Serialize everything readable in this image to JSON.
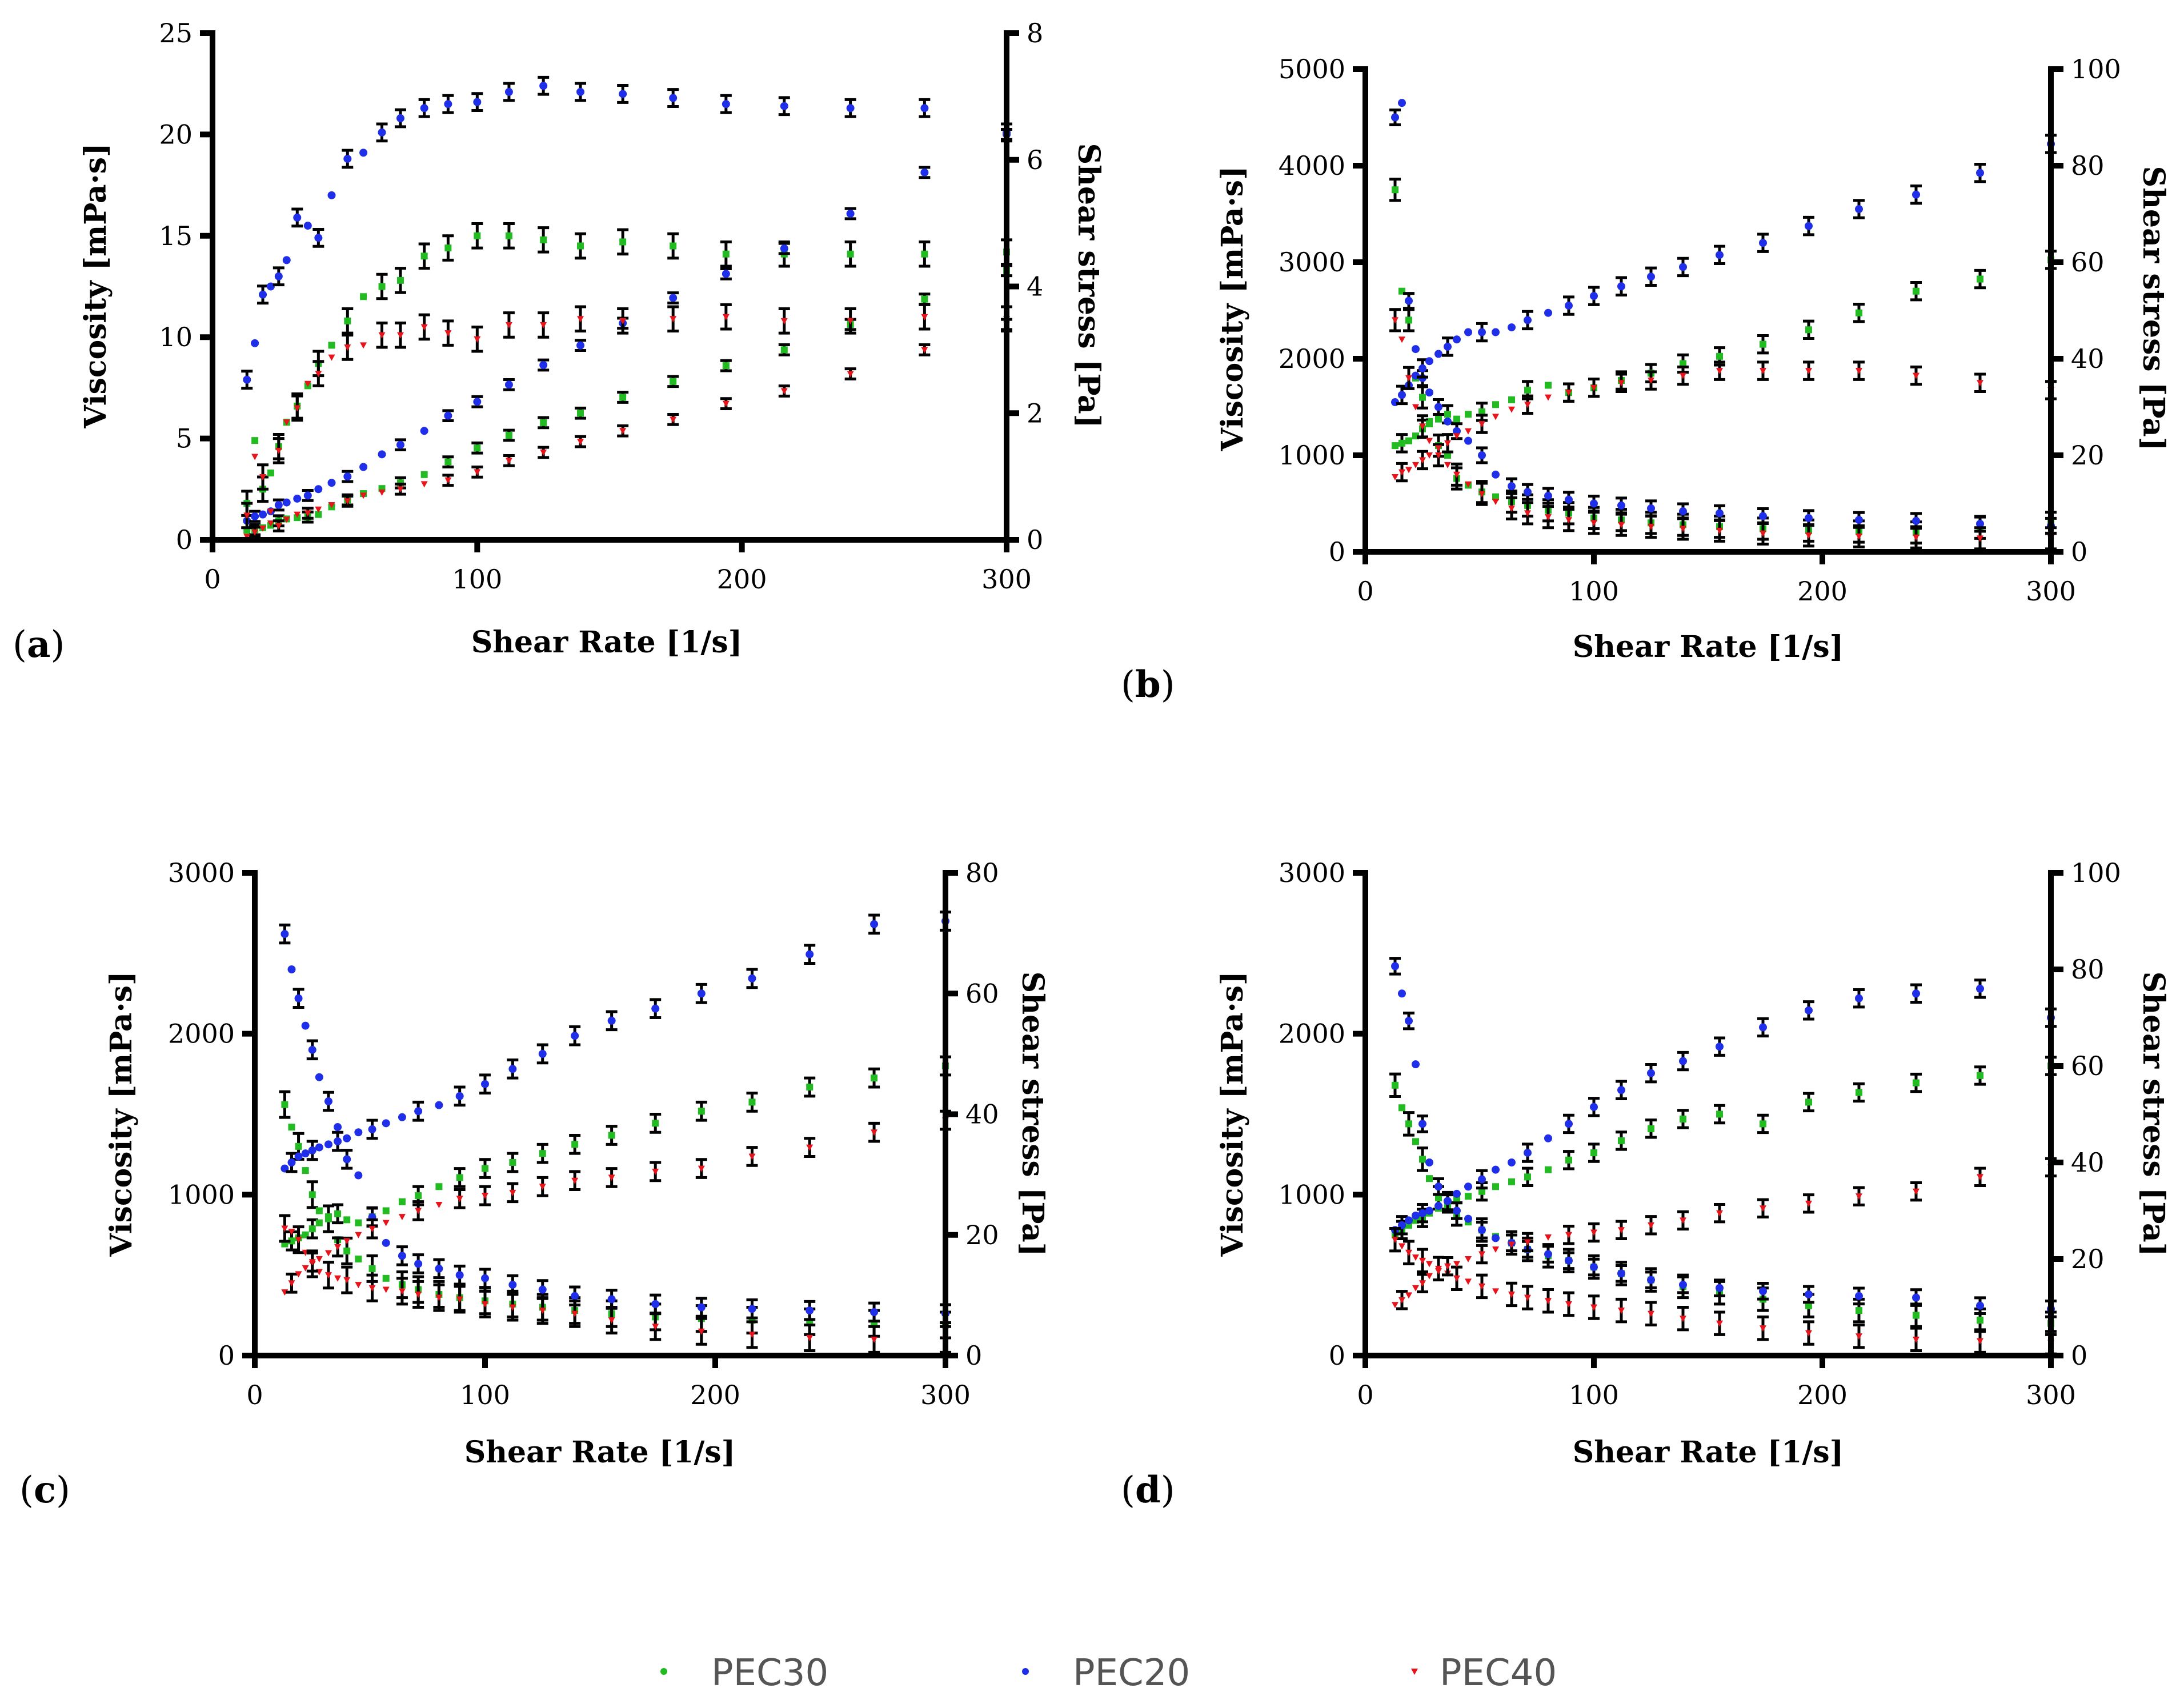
{
  "colors": {
    "PEC30": "#22bb22",
    "PEC20": "#1f2ee8",
    "PEC40": "#e8141b"
  },
  "legend": [
    {
      "name": "PEC30",
      "color": "#22bb22"
    },
    {
      "name": "PEC20",
      "color": "#1f2ee8"
    },
    {
      "name": "PEC40",
      "color": "#e8141b"
    }
  ],
  "chart_data": [
    {
      "panel": "a",
      "label_open": "(",
      "label_letter": "a",
      "label_close": ")",
      "type": "scatter",
      "xlabel": "Shear Rate [1/s]",
      "ylabel": "Viscosity [mPa·s]",
      "y2label": "Shear stress [Pa]",
      "xlim": [
        0,
        300
      ],
      "ylim": [
        0,
        25
      ],
      "y2lim": [
        0,
        8
      ],
      "xticks": [
        "0",
        "100",
        "200",
        "300"
      ],
      "yticks": [
        "0",
        "5",
        "10",
        "15",
        "20",
        "25"
      ],
      "y2ticks": [
        "0",
        "2",
        "4",
        "6",
        "8"
      ],
      "x": [
        13,
        16,
        19,
        22,
        25,
        28,
        32,
        36,
        40,
        45,
        51,
        57,
        64,
        71,
        80,
        89,
        100,
        112,
        125,
        139,
        155,
        174,
        194,
        216,
        241,
        269,
        300
      ],
      "viscosity": {
        "PEC30": [
          1.8,
          4.9,
          2.5,
          3.3,
          4.6,
          5.8,
          6.6,
          7.6,
          8.7,
          9.6,
          10.8,
          12.0,
          12.5,
          12.8,
          14.0,
          14.4,
          15.0,
          15.0,
          14.8,
          14.5,
          14.7,
          14.5,
          14.1,
          14.1,
          14.1,
          14.1,
          14.2
        ],
        "PEC20": [
          7.9,
          9.7,
          12.1,
          12.5,
          13.0,
          13.8,
          15.9,
          15.5,
          14.9,
          17.0,
          18.8,
          19.1,
          20.1,
          20.8,
          21.3,
          21.5,
          21.6,
          22.1,
          22.4,
          22.1,
          22.0,
          21.8,
          21.5,
          21.4,
          21.3,
          21.3,
          20.1
        ],
        "PEC40": [
          1.2,
          4.1,
          3.1,
          1.4,
          4.4,
          5.8,
          6.5,
          7.7,
          8.2,
          9.0,
          9.5,
          9.6,
          10.1,
          10.1,
          10.5,
          10.2,
          9.9,
          10.6,
          10.6,
          10.9,
          10.8,
          10.9,
          11.0,
          10.8,
          10.8,
          11.0,
          10.9
        ]
      },
      "shear_stress": {
        "PEC30": [
          0.15,
          0.16,
          0.19,
          0.23,
          0.3,
          0.33,
          0.35,
          0.36,
          0.4,
          0.52,
          0.63,
          0.73,
          0.81,
          0.9,
          1.03,
          1.23,
          1.45,
          1.65,
          1.85,
          2.0,
          2.25,
          2.5,
          2.75,
          3.0,
          3.4,
          3.8,
          4.25
        ],
        "PEC20": [
          0.3,
          0.37,
          0.4,
          0.45,
          0.55,
          0.59,
          0.65,
          0.7,
          0.8,
          0.9,
          1.0,
          1.15,
          1.35,
          1.5,
          1.72,
          1.96,
          2.18,
          2.45,
          2.76,
          3.07,
          3.42,
          3.82,
          4.2,
          4.6,
          5.15,
          5.8,
          6.4
        ],
        "PEC40": [
          0.05,
          0.12,
          0.18,
          0.26,
          0.22,
          0.32,
          0.4,
          0.42,
          0.48,
          0.55,
          0.61,
          0.7,
          0.75,
          0.8,
          0.88,
          0.94,
          1.07,
          1.25,
          1.38,
          1.55,
          1.72,
          1.9,
          2.15,
          2.35,
          2.62,
          3.0,
          3.4
        ]
      },
      "err_viscosity": 0.6,
      "err_stress": 0.08
    },
    {
      "panel": "b",
      "label_open": "(",
      "label_letter": "b",
      "label_close": ")",
      "type": "scatter",
      "xlabel": "Shear Rate [1/s]",
      "ylabel": "Viscosity [mPa·s]",
      "y2label": "Shear stress [Pa]",
      "xlim": [
        0,
        300
      ],
      "ylim": [
        0,
        5000
      ],
      "y2lim": [
        0,
        100
      ],
      "xticks": [
        "0",
        "100",
        "200",
        "300"
      ],
      "yticks": [
        "0",
        "1000",
        "2000",
        "3000",
        "4000",
        "5000"
      ],
      "y2ticks": [
        "0",
        "20",
        "40",
        "60",
        "80",
        "100"
      ],
      "x": [
        13,
        16,
        19,
        22,
        25,
        28,
        32,
        36,
        40,
        45,
        51,
        57,
        64,
        71,
        80,
        89,
        100,
        112,
        125,
        139,
        155,
        174,
        194,
        216,
        241,
        269,
        300
      ],
      "viscosity": {
        "PEC30": [
          3750,
          2700,
          2400,
          1800,
          1600,
          1350,
          1100,
          1000,
          760,
          690,
          620,
          570,
          520,
          480,
          430,
          400,
          350,
          330,
          300,
          280,
          260,
          240,
          220,
          210,
          200,
          250,
          300
        ],
        "PEC20": [
          4500,
          4650,
          2600,
          2100,
          1800,
          1650,
          1500,
          1350,
          1250,
          1150,
          1000,
          800,
          680,
          620,
          580,
          540,
          500,
          480,
          450,
          420,
          400,
          370,
          350,
          330,
          320,
          290,
          270
        ],
        "PEC40": [
          2400,
          2200,
          1800,
          1500,
          1300,
          1150,
          1000,
          900,
          800,
          700,
          600,
          520,
          450,
          400,
          360,
          330,
          300,
          280,
          260,
          240,
          220,
          190,
          170,
          160,
          150,
          140,
          140
        ]
      },
      "shear_stress": {
        "PEC30": [
          22,
          22.5,
          23,
          24,
          25.5,
          26.5,
          27.5,
          28.5,
          27.5,
          28.5,
          29,
          30.5,
          31.5,
          33.5,
          34.5,
          33,
          34,
          35.5,
          37,
          39,
          40.5,
          43,
          46,
          49.5,
          54,
          56.5,
          60.5
        ],
        "PEC20": [
          31,
          32.5,
          34.5,
          36.5,
          38,
          39.5,
          41,
          42.5,
          44,
          45.5,
          45.5,
          45.5,
          46.5,
          48,
          49.5,
          51,
          53,
          55,
          57,
          59,
          61.5,
          64,
          67.5,
          71,
          74,
          78.5,
          84.5
        ],
        "PEC40": [
          15.5,
          16.5,
          17,
          18,
          19,
          20,
          21.5,
          22.5,
          24,
          25,
          26.5,
          28,
          29.5,
          30.5,
          32,
          33,
          34,
          35,
          35.5,
          36.5,
          37.5,
          37.5,
          37.5,
          37.5,
          36.5,
          35,
          33.5
        ]
      },
      "err_viscosity": 110,
      "err_stress": 1.8
    },
    {
      "panel": "c",
      "label_open": "(",
      "label_letter": "c",
      "label_close": ")",
      "type": "scatter",
      "xlabel": "Shear Rate [1/s]",
      "ylabel": "Viscosity [mPa·s]",
      "y2label": "Shear stress [Pa]",
      "xlim": [
        0,
        300
      ],
      "ylim": [
        0,
        3000
      ],
      "y2lim": [
        0,
        80
      ],
      "xticks": [
        "0",
        "100",
        "200",
        "300"
      ],
      "yticks": [
        "0",
        "1000",
        "2000",
        "3000"
      ],
      "y2ticks": [
        "0",
        "20",
        "40",
        "60",
        "80"
      ],
      "x": [
        13,
        16,
        19,
        22,
        25,
        28,
        32,
        36,
        40,
        45,
        51,
        57,
        64,
        71,
        80,
        89,
        100,
        112,
        125,
        139,
        155,
        174,
        194,
        216,
        241,
        269,
        300
      ],
      "viscosity": {
        "PEC30": [
          1560,
          1420,
          1300,
          1150,
          1000,
          900,
          850,
          720,
          650,
          600,
          540,
          480,
          440,
          410,
          380,
          360,
          340,
          320,
          300,
          280,
          260,
          240,
          230,
          220,
          210,
          200,
          190
        ],
        "PEC20": [
          2620,
          2400,
          2220,
          2050,
          1900,
          1730,
          1580,
          1420,
          1220,
          1120,
          860,
          700,
          620,
          570,
          540,
          500,
          480,
          440,
          410,
          370,
          350,
          320,
          300,
          290,
          280,
          270,
          260
        ],
        "PEC40": [
          790,
          770,
          720,
          640,
          570,
          520,
          500,
          480,
          470,
          440,
          420,
          410,
          400,
          380,
          360,
          350,
          320,
          300,
          280,
          260,
          220,
          180,
          150,
          130,
          110,
          100,
          100
        ]
      },
      "shear_stress": {
        "PEC30": [
          18.5,
          19,
          19.5,
          20,
          21,
          22,
          23,
          23.5,
          22.5,
          22,
          23,
          24,
          25.5,
          26.5,
          28,
          29.5,
          31,
          32,
          33.5,
          35,
          36.5,
          38.5,
          40.5,
          42,
          44.5,
          46,
          48
        ],
        "PEC20": [
          31,
          32,
          33,
          33.5,
          34,
          34.5,
          35,
          35.5,
          36,
          37,
          37.5,
          38.5,
          39.5,
          40.5,
          41.5,
          43,
          45,
          47.5,
          50,
          53,
          55.5,
          57.5,
          60,
          62.5,
          66.5,
          71.5,
          72
        ],
        "PEC40": [
          10.5,
          12,
          13.5,
          14.5,
          15.5,
          16,
          17,
          18,
          19,
          20,
          21,
          22,
          23,
          24,
          25,
          26,
          26.5,
          27,
          28,
          29,
          29.5,
          30.5,
          31,
          33,
          34.5,
          37,
          39
        ]
      },
      "err_viscosity": 80,
      "err_stress": 1.5
    },
    {
      "panel": "d",
      "label_open": "(",
      "label_letter": "d",
      "label_close": ")",
      "type": "scatter",
      "xlabel": "Shear Rate [1/s]",
      "ylabel": "Viscosity [mPa·s]",
      "y2label": "Shear stress [Pa]",
      "xlim": [
        0,
        300
      ],
      "ylim": [
        0,
        3000
      ],
      "y2lim": [
        0,
        100
      ],
      "xticks": [
        "0",
        "100",
        "200",
        "300"
      ],
      "yticks": [
        "0",
        "1000",
        "2000",
        "3000"
      ],
      "y2ticks": [
        "0",
        "20",
        "40",
        "60",
        "80",
        "100"
      ],
      "x": [
        13,
        16,
        19,
        22,
        25,
        28,
        32,
        36,
        40,
        45,
        51,
        57,
        64,
        71,
        80,
        89,
        100,
        112,
        125,
        139,
        155,
        174,
        194,
        216,
        241,
        269,
        300
      ],
      "viscosity": {
        "PEC30": [
          1680,
          1540,
          1440,
          1330,
          1220,
          1100,
          980,
          920,
          880,
          830,
          780,
          740,
          700,
          660,
          620,
          590,
          550,
          510,
          470,
          430,
          390,
          350,
          310,
          280,
          250,
          220,
          200
        ],
        "PEC20": [
          2420,
          2250,
          2080,
          1810,
          1440,
          1200,
          1050,
          960,
          900,
          850,
          780,
          730,
          700,
          660,
          630,
          590,
          550,
          510,
          470,
          440,
          420,
          400,
          380,
          370,
          360,
          310,
          290
        ],
        "PEC40": [
          720,
          680,
          640,
          610,
          590,
          570,
          540,
          510,
          480,
          460,
          430,
          400,
          380,
          360,
          340,
          320,
          300,
          280,
          260,
          230,
          200,
          170,
          140,
          120,
          100,
          90,
          80
        ]
      },
      "shear_stress": {
        "PEC30": [
          25,
          26,
          27,
          28,
          28.5,
          29.5,
          30.5,
          31.5,
          32.5,
          33,
          34,
          35,
          36,
          37,
          38.5,
          40.5,
          42,
          44.5,
          47,
          49,
          50,
          48,
          52.5,
          54.5,
          56.5,
          58,
          60
        ],
        "PEC20": [
          26,
          27,
          28,
          29,
          29.5,
          30,
          31,
          32,
          33.5,
          35,
          36.5,
          38.5,
          40,
          42,
          45,
          48,
          51.5,
          55,
          58.5,
          61,
          64,
          68,
          71.5,
          74,
          75,
          76,
          70
        ],
        "PEC40": [
          10.5,
          11.5,
          12.5,
          14,
          15,
          16.5,
          17.5,
          18.5,
          19,
          20,
          21,
          22,
          23,
          23.5,
          24.5,
          25,
          25.5,
          26,
          27,
          28,
          29.5,
          30.5,
          31.5,
          33,
          34,
          37,
          39
        ]
      },
      "err_viscosity": 70,
      "err_stress": 1.8
    }
  ]
}
